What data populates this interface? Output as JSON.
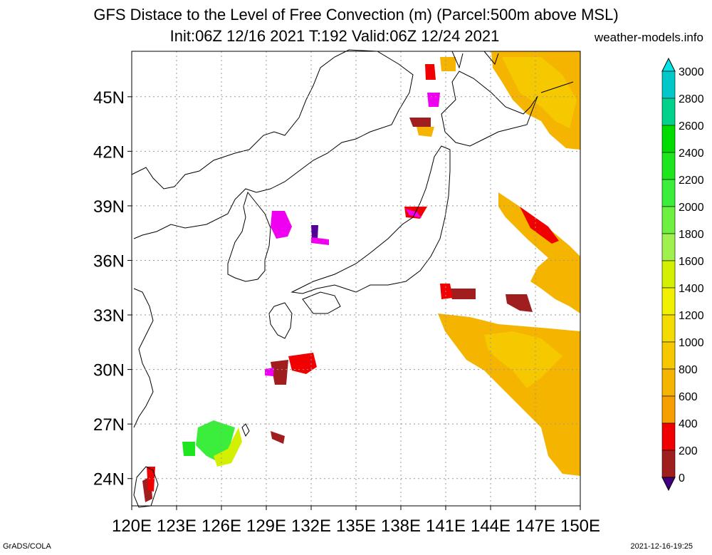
{
  "header": {
    "title_line1": "GFS Distace to the Level of Free Convection (m) (Parcel:500m above MSL)",
    "title_line2": "Init:06Z 12/16 2021 T:192 Valid:06Z 12/24 2021",
    "source": "weather-models.info"
  },
  "footer": {
    "left": "GrADS/COLA",
    "right": "2021-12-16-19:25"
  },
  "map": {
    "lat_labels": [
      "45N",
      "42N",
      "39N",
      "36N",
      "33N",
      "30N",
      "27N",
      "24N"
    ],
    "lon_labels": [
      "120E",
      "123E",
      "126E",
      "129E",
      "132E",
      "135E",
      "138E",
      "141E",
      "144E",
      "147E",
      "150E"
    ],
    "lat_values": [
      45,
      42,
      39,
      36,
      33,
      30,
      27,
      24
    ],
    "lon_values": [
      120,
      123,
      126,
      129,
      132,
      135,
      138,
      141,
      144,
      147,
      150
    ],
    "extent": {
      "lon_min": 120,
      "lon_max": 150,
      "lat_min": 22.5,
      "lat_max": 47.5
    }
  },
  "colorbar": {
    "labels": [
      "3000",
      "2800",
      "2600",
      "2400",
      "2200",
      "2000",
      "1800",
      "1600",
      "1400",
      "1200",
      "1000",
      "800",
      "600",
      "400",
      "200",
      "0"
    ],
    "colors": [
      "#00c8c8",
      "#00d28c",
      "#00dc00",
      "#1ee61e",
      "#3cee3c",
      "#6ef040",
      "#a0f050",
      "#d2f000",
      "#f0f000",
      "#f5dc00",
      "#f5c800",
      "#f5b400",
      "#f5a000",
      "#f00000",
      "#a01e1e",
      "#f000f0",
      "#500096"
    ],
    "top_arrow_color": "#00e6e6",
    "bottom_arrow_color": "#400080"
  }
}
